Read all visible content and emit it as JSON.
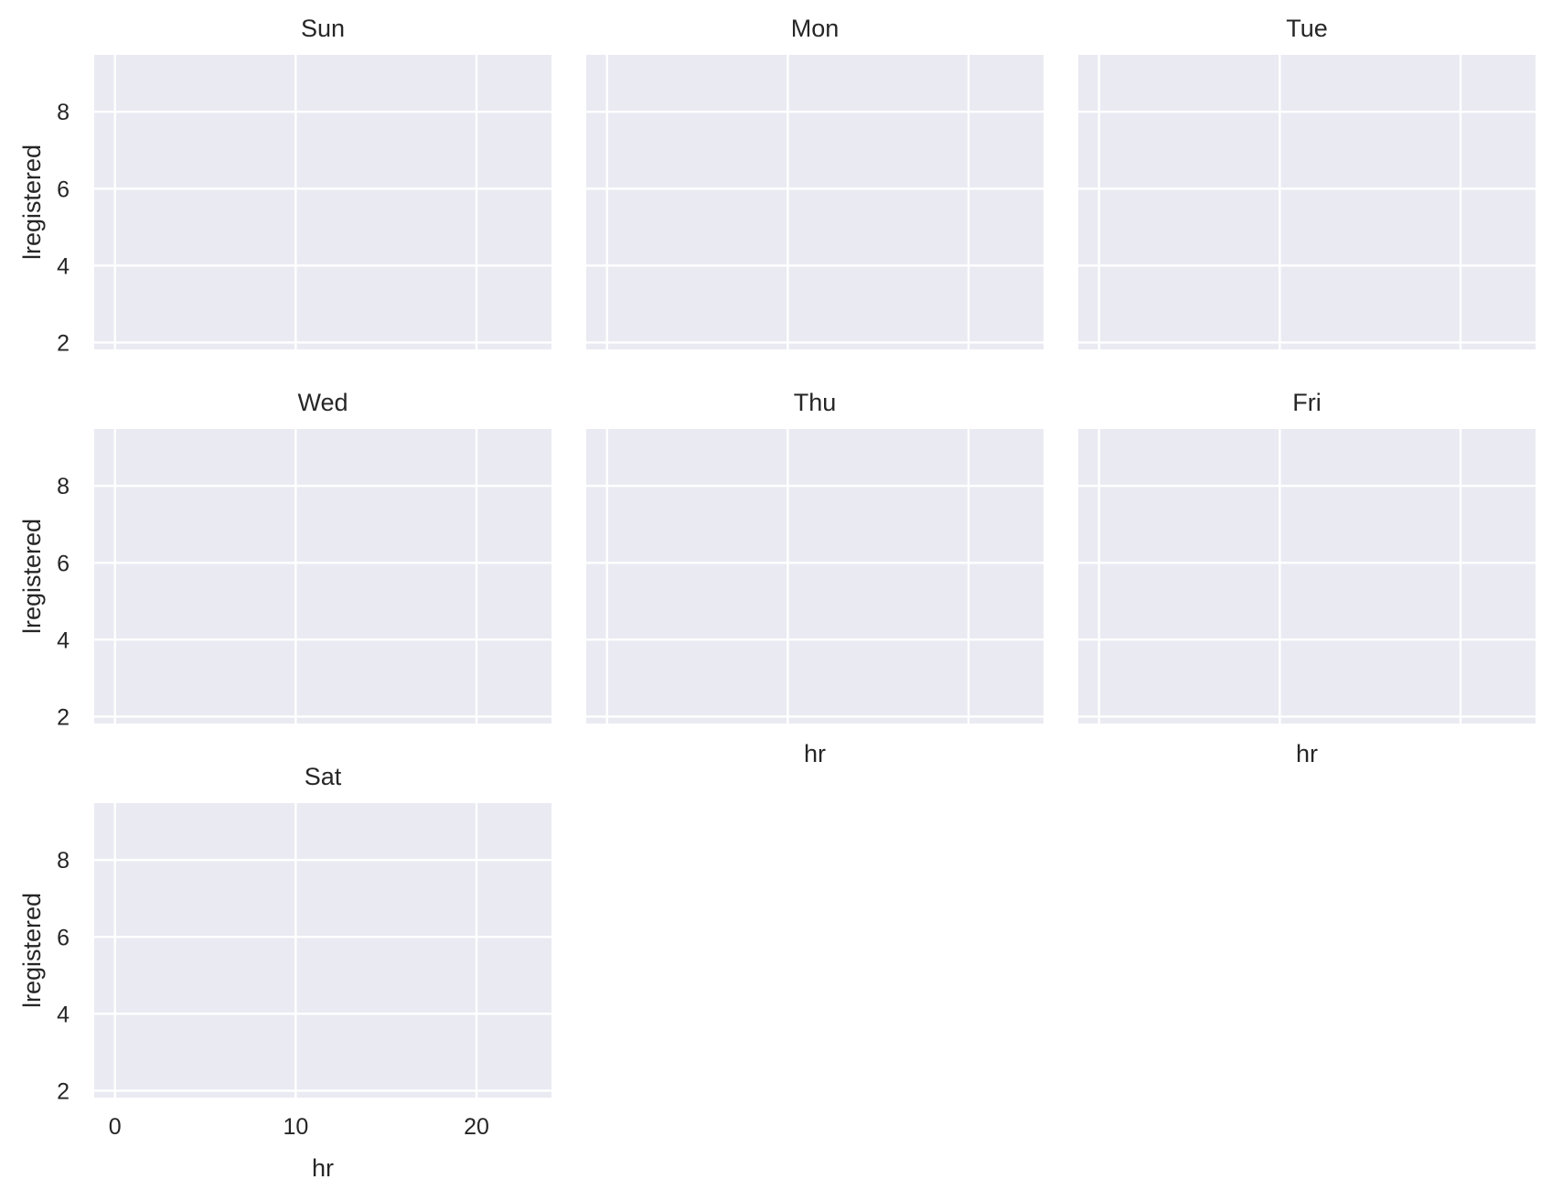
{
  "chart_data": {
    "type": "line",
    "layout": "facet grid, 3 columns, 7 panels",
    "grid": true,
    "background_color": "#eaeaf2",
    "grid_color": "#ffffff",
    "text_color": "#262626",
    "xlabel": "hr",
    "ylabel": "lregistered",
    "xlim": [
      -1.15,
      24.15
    ],
    "ylim": [
      1.82,
      9.48
    ],
    "xticks": [
      0,
      10,
      20
    ],
    "yticks": [
      2,
      4,
      6,
      8
    ],
    "panels": [
      {
        "title": "Sun",
        "series": []
      },
      {
        "title": "Mon",
        "series": []
      },
      {
        "title": "Tue",
        "series": []
      },
      {
        "title": "Wed",
        "series": []
      },
      {
        "title": "Thu",
        "series": []
      },
      {
        "title": "Fri",
        "series": []
      },
      {
        "title": "Sat",
        "series": []
      }
    ]
  }
}
